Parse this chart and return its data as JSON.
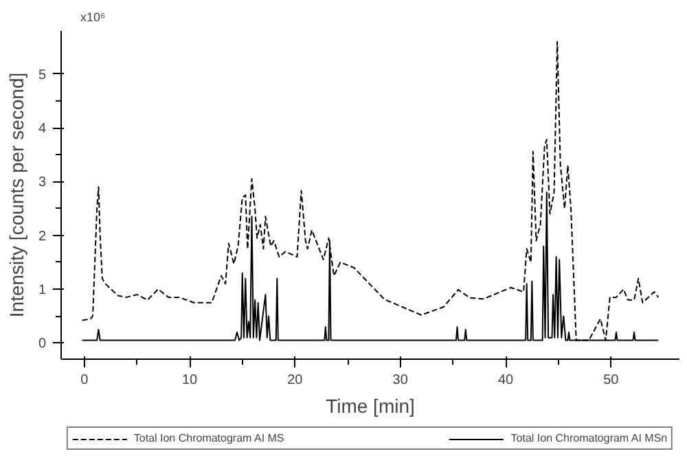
{
  "chart_data": {
    "type": "line",
    "xlabel": "Time [min]",
    "ylabel": "Intensity [counts per second]",
    "annotations": [
      "x10⁶"
    ],
    "xlim": [
      -2.2,
      56.5
    ],
    "ylim": [
      -0.3,
      5.8
    ],
    "xticks": [
      0,
      10,
      20,
      30,
      40,
      50
    ],
    "yticks": [
      0,
      1,
      2,
      3,
      4,
      5
    ],
    "grid": false,
    "legend": "bottom",
    "series": [
      {
        "name": "Total Ion Chromatogram AI MS",
        "color": "#000000",
        "line_style": "dashed",
        "x": [
          -0.2,
          0.6,
          0.8,
          1.0,
          1.2,
          1.35,
          1.5,
          1.7,
          2.0,
          3.2,
          4.0,
          5.0,
          6.0,
          7.0,
          8.0,
          9.0,
          10.4,
          12.1,
          13.0,
          13.4,
          13.7,
          14.2,
          14.6,
          15.0,
          15.3,
          15.5,
          15.9,
          16.2,
          16.4,
          16.7,
          17.0,
          17.2,
          17.7,
          18.0,
          18.5,
          19.1,
          20.2,
          20.6,
          21.0,
          21.2,
          21.6,
          22.3,
          22.7,
          23.2,
          23.7,
          24.3,
          25.6,
          28.5,
          32.0,
          34.1,
          35.5,
          36.6,
          37.9,
          40.5,
          41.7,
          42.0,
          42.4,
          42.6,
          42.9,
          43.3,
          43.7,
          43.9,
          44.2,
          44.6,
          44.9,
          45.2,
          45.6,
          45.9,
          46.2,
          46.7,
          47.9,
          49.0,
          49.5,
          49.9,
          50.5,
          51.2,
          51.6,
          52.2,
          52.6,
          53.0,
          54.1,
          54.5
        ],
        "values": [
          0.42,
          0.45,
          0.5,
          1.5,
          2.5,
          2.9,
          2.0,
          1.2,
          1.1,
          0.88,
          0.85,
          0.9,
          0.8,
          1.0,
          0.85,
          0.85,
          0.75,
          0.75,
          1.25,
          1.1,
          1.85,
          1.47,
          1.8,
          2.7,
          2.75,
          1.75,
          3.05,
          2.5,
          1.95,
          2.2,
          1.75,
          2.35,
          1.8,
          1.9,
          1.6,
          1.7,
          1.6,
          2.83,
          1.9,
          1.75,
          2.1,
          1.75,
          1.55,
          1.95,
          1.25,
          1.5,
          1.4,
          0.81,
          0.52,
          0.67,
          0.99,
          0.84,
          0.82,
          1.03,
          0.95,
          1.75,
          1.5,
          3.56,
          1.9,
          2.2,
          3.67,
          3.78,
          2.4,
          2.8,
          5.6,
          3.3,
          2.5,
          3.3,
          2.5,
          0.05,
          0.05,
          0.45,
          0.05,
          0.85,
          0.85,
          1.0,
          0.8,
          0.8,
          1.2,
          0.75,
          0.95,
          0.85
        ]
      },
      {
        "name": "Total Ion Chromatogram AI MSn",
        "color": "#000000",
        "line_style": "solid",
        "x": [
          -0.2,
          1.2,
          1.35,
          1.5,
          14.3,
          14.5,
          14.7,
          14.9,
          15.0,
          15.15,
          15.3,
          15.45,
          15.6,
          15.75,
          15.9,
          16.05,
          16.2,
          16.35,
          16.5,
          16.65,
          17.2,
          17.35,
          17.5,
          17.65,
          18.2,
          18.3,
          18.4,
          22.8,
          22.9,
          23.0,
          23.2,
          23.3,
          23.4,
          35.3,
          35.4,
          35.5,
          36.1,
          36.2,
          36.3,
          41.9,
          42.0,
          42.1,
          42.4,
          42.5,
          42.6,
          43.5,
          43.6,
          43.75,
          43.9,
          44.05,
          44.4,
          44.5,
          44.65,
          44.8,
          44.95,
          45.1,
          45.3,
          45.5,
          45.7,
          45.9,
          46.0,
          46.1,
          50.4,
          50.5,
          50.6,
          52.1,
          52.2,
          52.3,
          54.5
        ],
        "values": [
          0.05,
          0.05,
          0.25,
          0.05,
          0.05,
          0.2,
          0.05,
          0.1,
          1.3,
          0.1,
          1.2,
          0.1,
          0.4,
          0.1,
          2.35,
          0.1,
          0.8,
          0.1,
          0.75,
          0.05,
          0.9,
          0.1,
          0.5,
          0.05,
          0.05,
          1.2,
          0.05,
          0.05,
          0.3,
          0.05,
          0.05,
          1.9,
          0.05,
          0.05,
          0.3,
          0.05,
          0.05,
          0.25,
          0.05,
          0.05,
          1.1,
          0.05,
          0.05,
          1.15,
          0.05,
          0.05,
          1.8,
          0.1,
          2.8,
          0.1,
          0.1,
          0.9,
          0.1,
          1.6,
          0.1,
          1.55,
          0.1,
          0.5,
          0.05,
          0.05,
          0.2,
          0.05,
          0.05,
          0.2,
          0.05,
          0.05,
          0.2,
          0.05,
          0.05
        ]
      }
    ]
  }
}
